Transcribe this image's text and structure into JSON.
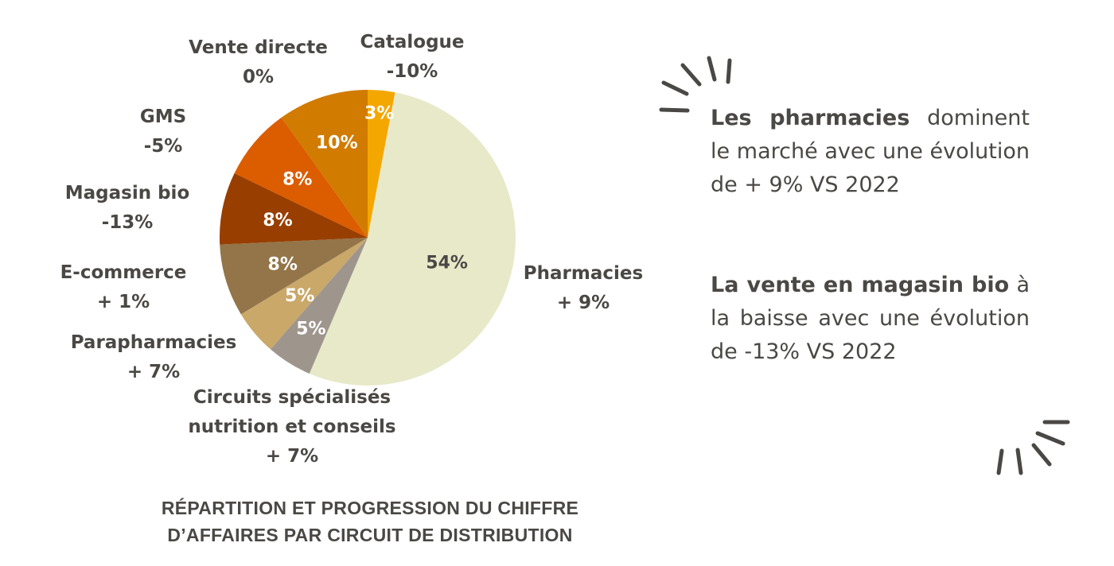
{
  "chart_data": {
    "type": "pie",
    "title": "RÉPARTITION ET PROGRESSION DU CHIFFRE D’AFFAIRES PAR CIRCUIT DE DISTRIBUTION",
    "start": "top, clockwise",
    "slices": [
      {
        "name": "Catalogue",
        "value": 3,
        "pct_label": "3%",
        "evolution": "-10%",
        "color": "#f4a700",
        "label_color": "#ffffff"
      },
      {
        "name": "Pharmacies",
        "value": 54,
        "pct_label": "54%",
        "evolution": "+ 9%",
        "color": "#e8e9c9",
        "label_color": "#4a4845"
      },
      {
        "name": "Circuits spécialisés nutrition et conseils",
        "value": 5,
        "pct_label": "5%",
        "evolution": "+ 7%",
        "color": "#9e958d",
        "label_color": "#ffffff"
      },
      {
        "name": "Parapharmacies",
        "value": 5,
        "pct_label": "5%",
        "evolution": "+ 7%",
        "color": "#c9a86a",
        "label_color": "#ffffff"
      },
      {
        "name": "E-commerce",
        "value": 8,
        "pct_label": "8%",
        "evolution": "+ 1%",
        "color": "#937549",
        "label_color": "#ffffff"
      },
      {
        "name": "Magasin bio",
        "value": 8,
        "pct_label": "8%",
        "evolution": "-13%",
        "color": "#983e00",
        "label_color": "#ffffff"
      },
      {
        "name": "GMS",
        "value": 8,
        "pct_label": "8%",
        "evolution": "-5%",
        "color": "#dc5c00",
        "label_color": "#ffffff"
      },
      {
        "name": "Vente directe",
        "value": 10,
        "pct_label": "10%",
        "evolution": "0%",
        "color": "#d17b00",
        "label_color": "#ffffff"
      }
    ]
  },
  "labels": {
    "catalogue": {
      "name": "Catalogue",
      "evolution": "-10%"
    },
    "vente_directe": {
      "name": "Vente directe",
      "evolution": "0%"
    },
    "gms": {
      "name": "GMS",
      "evolution": "-5%"
    },
    "magasin_bio": {
      "name": "Magasin bio",
      "evolution": "-13%"
    },
    "ecommerce": {
      "name": "E-commerce",
      "evolution": "+ 1%"
    },
    "parapharmacies": {
      "name": "Parapharmacies",
      "evolution": "+ 7%"
    },
    "circuits": {
      "line1": "Circuits spécialisés",
      "line2": "nutrition et conseils",
      "evolution": "+ 7%"
    },
    "pharmacies": {
      "name": "Pharmacies",
      "evolution": "+ 9%"
    }
  },
  "caption": {
    "line1": "RÉPARTITION ET PROGRESSION DU CHIFFRE",
    "line2": "D’AFFAIRES PAR CIRCUIT DE DISTRIBUTION"
  },
  "insights": [
    {
      "bold": "Les pharmacies",
      "rest": " dominent le marché avec une évolution de + 9% VS 2022"
    },
    {
      "bold": "La vente en magasin bio",
      "rest": " à la baisse avec une évolution de -13% VS 2022"
    }
  ]
}
